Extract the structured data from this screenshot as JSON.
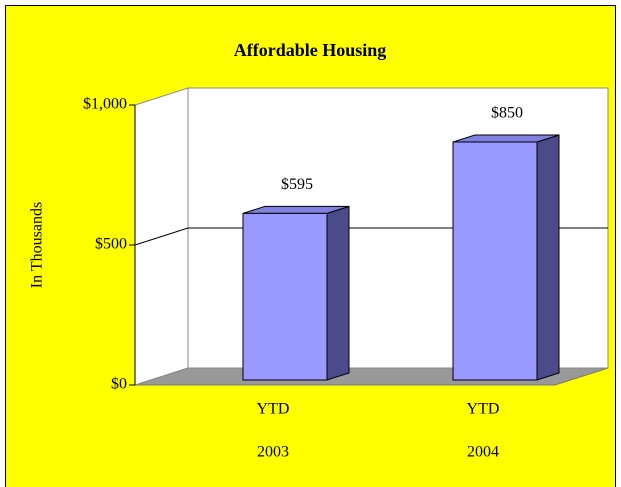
{
  "chart_data": {
    "type": "bar3d",
    "title": "Affordable Housing",
    "y_label": "In Thousands",
    "categories": [
      [
        "YTD",
        "2003"
      ],
      [
        "YTD",
        "2004"
      ]
    ],
    "values": [
      595,
      850
    ],
    "value_labels": [
      "$595",
      "$850"
    ],
    "color": "#9999ff",
    "ylim": [
      0,
      1000
    ],
    "yticks": [
      {
        "value": 0,
        "label": "$0"
      },
      {
        "value": 500,
        "label": "$500"
      },
      {
        "value": 1000,
        "label": "$1,000"
      }
    ],
    "grid": true
  }
}
